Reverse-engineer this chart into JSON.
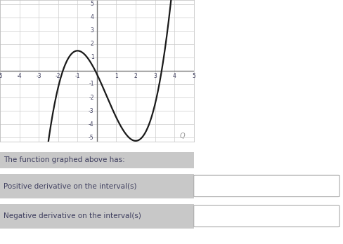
{
  "xlim": [
    -5,
    5
  ],
  "ylim": [
    -5.3,
    5.3
  ],
  "xticks": [
    -5,
    -4,
    -3,
    -2,
    -1,
    1,
    2,
    3,
    4,
    5
  ],
  "yticks": [
    -5,
    -4,
    -3,
    -2,
    -1,
    1,
    2,
    3,
    4,
    5
  ],
  "xtick_labels": [
    "-5",
    "-4",
    "-3",
    "-2",
    "-1",
    "1",
    "2",
    "3",
    "4",
    "5"
  ],
  "ytick_labels": [
    "-5",
    "-4",
    "-3",
    "-2",
    "-1",
    "1",
    "2",
    "3",
    "4",
    "5"
  ],
  "curve_color": "#1a1a1a",
  "curve_lw": 1.6,
  "grid_color": "#cccccc",
  "axis_color": "#777777",
  "bg_color": "#ffffff",
  "plot_bg": "#ffffff",
  "label_text1": "The function graphed above has:",
  "label_text2": "Positive derivative on the interval(s)",
  "label_text3": "Negative derivative on the interval(s)",
  "label_bg": "#c8c8c8",
  "text_color": "#404060",
  "box_bg": "#ffffff",
  "box_border": "#aaaaaa",
  "poly_a": 0.5,
  "poly_b": -0.75,
  "poly_c": -3.0,
  "poly_d": -0.25
}
